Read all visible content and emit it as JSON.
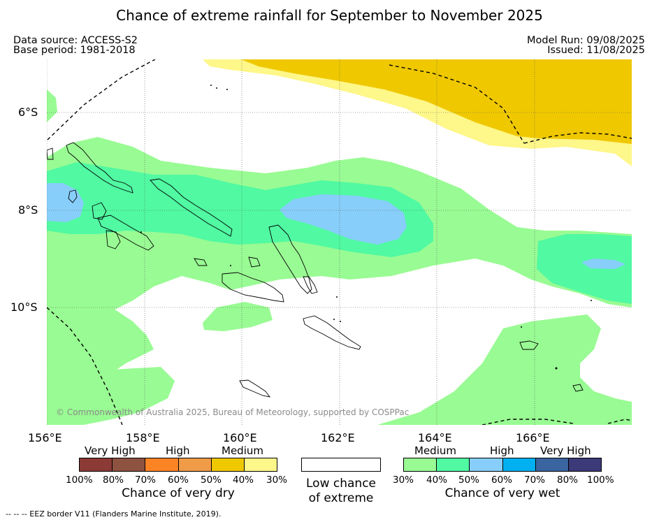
{
  "title": "Chance of extreme rainfall for September to November 2025",
  "data_source": "Data source: ACCESS-S2",
  "base_period": "Base period: 1981-2018",
  "model_run": "Model Run: 09/08/2025",
  "issued": "Issued: 11/08/2025",
  "copyright": "© Commonwealth of Australia 2025, Bureau of Meteorology, supported by COSPPac",
  "footnote": "--  --  -- EEZ border V11 (Flanders Marine Institute, 2019).",
  "lat_ticks": [
    "6°S",
    "8°S",
    "10°S"
  ],
  "lon_ticks": [
    "156°E",
    "158°E",
    "160°E",
    "162°E",
    "164°E",
    "166°E"
  ],
  "dry_legend": {
    "categories": [
      "Very High",
      "High",
      "Medium"
    ],
    "percents": [
      "100%",
      "80%",
      "70%",
      "60%",
      "50%",
      "40%",
      "30%"
    ],
    "colors": [
      "#8b3a36",
      "#8e5240",
      "#fd8425",
      "#ef9b48",
      "#efc800",
      "#fef789"
    ],
    "caption": "Chance of very dry"
  },
  "low_legend": {
    "caption_line1": "Low chance",
    "caption_line2": "of extreme",
    "color": "#ffffff"
  },
  "wet_legend": {
    "categories": [
      "Medium",
      "High",
      "Very High"
    ],
    "percents": [
      "30%",
      "40%",
      "50%",
      "60%",
      "70%",
      "80%",
      "100%"
    ],
    "colors": [
      "#99fb93",
      "#50f9a2",
      "#87cefa",
      "#00b0f0",
      "#3b65a0",
      "#3c3a78"
    ],
    "caption": "Chance of very wet"
  }
}
